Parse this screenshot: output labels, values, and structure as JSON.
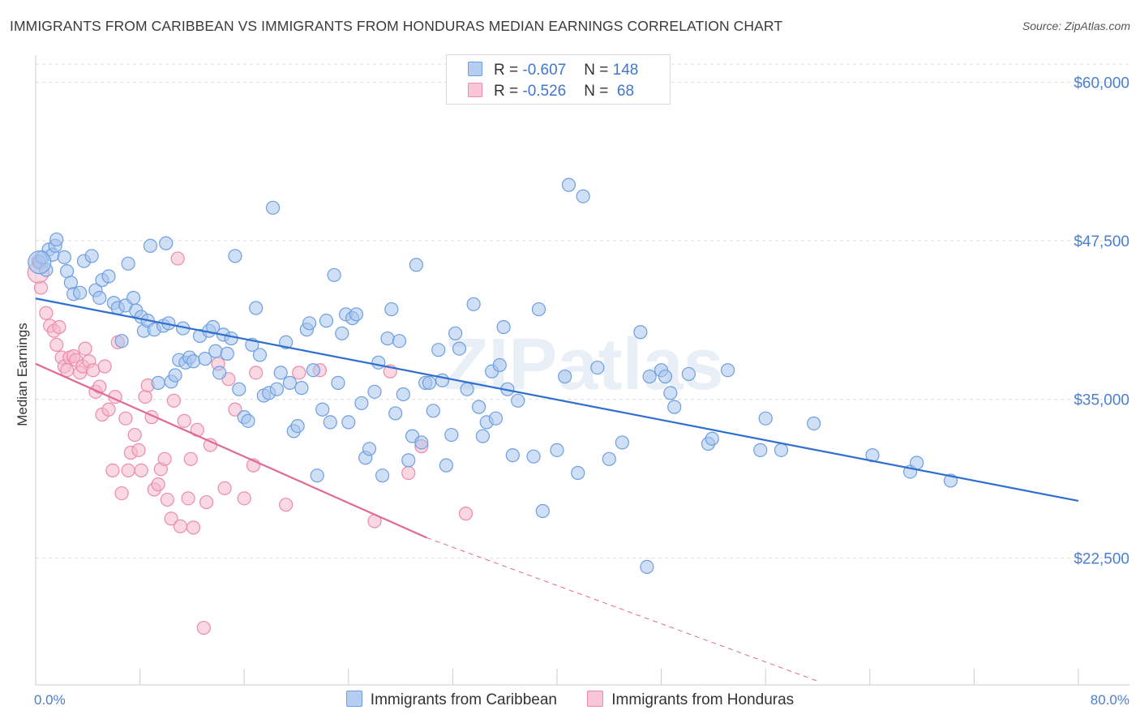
{
  "title": "IMMIGRANTS FROM CARIBBEAN VS IMMIGRANTS FROM HONDURAS MEDIAN EARNINGS CORRELATION CHART",
  "source": "Source: ZipAtlas.com",
  "watermark": "ZIPatlas",
  "legend": {
    "rows": [
      {
        "r_label": "R = ",
        "r_value": "-0.607",
        "n_label": "N = ",
        "n_value": "148"
      },
      {
        "r_label": "R = ",
        "r_value": "-0.526",
        "n_label": "N = ",
        "n_value": " 68"
      }
    ]
  },
  "bottom_legend": [
    "Immigrants from Caribbean",
    "Immigrants from Honduras"
  ],
  "colors": {
    "caribbean_fill": "#a7c4ec",
    "caribbean_stroke": "#6f9ee0",
    "caribbean_line": "#2f6fd0",
    "honduras_fill": "#f6b8cb",
    "honduras_stroke": "#ec8bab",
    "honduras_line": "#e06a93",
    "grid": "#dddddd",
    "tick_text": "#4a7fd0"
  },
  "chart_data": {
    "type": "scatter",
    "title": "IMMIGRANTS FROM CARIBBEAN VS IMMIGRANTS FROM HONDURAS MEDIAN EARNINGS CORRELATION CHART",
    "xlabel": "",
    "ylabel": "Median Earnings",
    "xlim": [
      0,
      80
    ],
    "ylim": [
      12500,
      62000
    ],
    "x_tick_labels": [
      "0.0%",
      "80.0%"
    ],
    "y_ticks": [
      22500,
      35000,
      47500,
      60000
    ],
    "y_tick_labels": [
      "$22,500",
      "$35,000",
      "$47,500",
      "$60,000"
    ],
    "series": [
      {
        "name": "Immigrants from Caribbean",
        "R": -0.607,
        "N": 148,
        "trend": {
          "x": [
            0,
            80
          ],
          "y": [
            42950,
            27000
          ]
        },
        "points": [
          [
            0.3,
            45800
          ],
          [
            0.5,
            46200
          ],
          [
            0.8,
            45200
          ],
          [
            1.0,
            46800
          ],
          [
            1.3,
            46400
          ],
          [
            1.5,
            47100
          ],
          [
            1.6,
            47600
          ],
          [
            2.2,
            46200
          ],
          [
            2.4,
            45100
          ],
          [
            2.7,
            44200
          ],
          [
            2.9,
            43300
          ],
          [
            3.4,
            43400
          ],
          [
            3.7,
            45900
          ],
          [
            4.3,
            46300
          ],
          [
            4.6,
            43600
          ],
          [
            4.9,
            43000
          ],
          [
            5.1,
            44400
          ],
          [
            5.6,
            44700
          ],
          [
            6.0,
            42600
          ],
          [
            6.3,
            42200
          ],
          [
            6.6,
            39600
          ],
          [
            6.9,
            42400
          ],
          [
            7.1,
            45700
          ],
          [
            7.5,
            43000
          ],
          [
            7.7,
            42000
          ],
          [
            8.1,
            41500
          ],
          [
            8.3,
            40400
          ],
          [
            8.6,
            41200
          ],
          [
            8.8,
            47100
          ],
          [
            9.1,
            40500
          ],
          [
            9.4,
            36300
          ],
          [
            9.8,
            40800
          ],
          [
            10.0,
            47300
          ],
          [
            10.2,
            41000
          ],
          [
            10.4,
            36400
          ],
          [
            10.7,
            36900
          ],
          [
            11.0,
            38100
          ],
          [
            11.3,
            40600
          ],
          [
            11.5,
            37900
          ],
          [
            11.8,
            38300
          ],
          [
            12.1,
            38000
          ],
          [
            12.6,
            40000
          ],
          [
            13.0,
            38200
          ],
          [
            13.3,
            40400
          ],
          [
            13.6,
            40700
          ],
          [
            13.8,
            38800
          ],
          [
            14.1,
            37100
          ],
          [
            14.4,
            40100
          ],
          [
            14.7,
            38600
          ],
          [
            15.0,
            39800
          ],
          [
            15.3,
            46300
          ],
          [
            15.6,
            35800
          ],
          [
            16.0,
            33600
          ],
          [
            16.3,
            33300
          ],
          [
            16.6,
            39300
          ],
          [
            16.9,
            42200
          ],
          [
            17.2,
            38500
          ],
          [
            17.5,
            35300
          ],
          [
            17.9,
            35500
          ],
          [
            18.2,
            50100
          ],
          [
            18.5,
            35800
          ],
          [
            18.8,
            37100
          ],
          [
            19.2,
            39500
          ],
          [
            19.5,
            36300
          ],
          [
            19.8,
            32500
          ],
          [
            20.1,
            32900
          ],
          [
            20.4,
            35900
          ],
          [
            20.8,
            40500
          ],
          [
            21.0,
            41000
          ],
          [
            21.3,
            37300
          ],
          [
            21.6,
            29000
          ],
          [
            22.0,
            34200
          ],
          [
            22.3,
            41200
          ],
          [
            22.6,
            33200
          ],
          [
            22.9,
            44800
          ],
          [
            23.2,
            36300
          ],
          [
            23.5,
            40200
          ],
          [
            23.8,
            41700
          ],
          [
            24.0,
            33200
          ],
          [
            24.3,
            41400
          ],
          [
            24.6,
            41700
          ],
          [
            25.0,
            34700
          ],
          [
            25.3,
            30400
          ],
          [
            25.6,
            31100
          ],
          [
            26.0,
            35600
          ],
          [
            26.3,
            37900
          ],
          [
            26.6,
            29000
          ],
          [
            27.0,
            39800
          ],
          [
            27.3,
            42100
          ],
          [
            27.6,
            33900
          ],
          [
            27.9,
            39600
          ],
          [
            28.2,
            35400
          ],
          [
            28.6,
            30200
          ],
          [
            28.9,
            32100
          ],
          [
            29.2,
            45600
          ],
          [
            29.6,
            31600
          ],
          [
            29.9,
            36300
          ],
          [
            30.2,
            36300
          ],
          [
            30.5,
            34100
          ],
          [
            30.9,
            38900
          ],
          [
            31.2,
            36500
          ],
          [
            31.5,
            29800
          ],
          [
            31.9,
            32200
          ],
          [
            32.2,
            40200
          ],
          [
            32.5,
            39000
          ],
          [
            33.1,
            35800
          ],
          [
            33.6,
            42500
          ],
          [
            34.0,
            34400
          ],
          [
            34.3,
            32100
          ],
          [
            34.6,
            33200
          ],
          [
            35.0,
            37200
          ],
          [
            35.3,
            33500
          ],
          [
            35.6,
            37700
          ],
          [
            35.9,
            40700
          ],
          [
            36.2,
            35800
          ],
          [
            36.6,
            30600
          ],
          [
            37.0,
            34900
          ],
          [
            38.2,
            30500
          ],
          [
            38.6,
            42100
          ],
          [
            38.9,
            26200
          ],
          [
            40.0,
            31000
          ],
          [
            40.6,
            36800
          ],
          [
            40.9,
            51900
          ],
          [
            41.6,
            29200
          ],
          [
            42.0,
            51000
          ],
          [
            43.1,
            37500
          ],
          [
            44.0,
            30300
          ],
          [
            45.0,
            31600
          ],
          [
            46.4,
            40300
          ],
          [
            46.9,
            21800
          ],
          [
            47.1,
            36800
          ],
          [
            48.0,
            37300
          ],
          [
            48.3,
            36800
          ],
          [
            48.7,
            35500
          ],
          [
            49.0,
            34400
          ],
          [
            50.1,
            37000
          ],
          [
            51.6,
            31500
          ],
          [
            51.9,
            31900
          ],
          [
            53.1,
            37300
          ],
          [
            55.6,
            31000
          ],
          [
            56.0,
            33500
          ],
          [
            57.2,
            31000
          ],
          [
            59.7,
            33100
          ],
          [
            64.2,
            30600
          ],
          [
            67.1,
            29300
          ],
          [
            67.6,
            30000
          ],
          [
            70.2,
            28600
          ]
        ]
      },
      {
        "name": "Immigrants from Honduras",
        "R": -0.526,
        "N": 68,
        "trend": {
          "x": [
            0,
            30
          ],
          "y": [
            37800,
            24100
          ]
        },
        "trend_dashed": {
          "x": [
            30,
            60
          ],
          "y": [
            24100,
            12800
          ]
        },
        "points": [
          [
            0.2,
            45900
          ],
          [
            0.4,
            43800
          ],
          [
            0.8,
            41800
          ],
          [
            1.1,
            40800
          ],
          [
            1.4,
            40400
          ],
          [
            1.6,
            39300
          ],
          [
            1.8,
            40700
          ],
          [
            2.0,
            38300
          ],
          [
            2.2,
            37600
          ],
          [
            2.4,
            37300
          ],
          [
            2.6,
            38300
          ],
          [
            2.9,
            38400
          ],
          [
            3.1,
            38100
          ],
          [
            3.4,
            37100
          ],
          [
            3.6,
            37600
          ],
          [
            3.8,
            39000
          ],
          [
            4.1,
            38000
          ],
          [
            4.4,
            37300
          ],
          [
            4.6,
            35600
          ],
          [
            4.9,
            36000
          ],
          [
            5.1,
            33800
          ],
          [
            5.3,
            37600
          ],
          [
            5.6,
            34200
          ],
          [
            5.9,
            29400
          ],
          [
            6.1,
            35200
          ],
          [
            6.3,
            39500
          ],
          [
            6.6,
            27600
          ],
          [
            6.9,
            33500
          ],
          [
            7.1,
            29400
          ],
          [
            7.3,
            30800
          ],
          [
            7.6,
            32200
          ],
          [
            7.9,
            31000
          ],
          [
            8.1,
            29400
          ],
          [
            8.4,
            35200
          ],
          [
            8.6,
            36100
          ],
          [
            8.9,
            33600
          ],
          [
            9.1,
            27900
          ],
          [
            9.4,
            28300
          ],
          [
            9.6,
            29500
          ],
          [
            9.9,
            30300
          ],
          [
            10.1,
            27100
          ],
          [
            10.4,
            25600
          ],
          [
            10.6,
            34900
          ],
          [
            10.9,
            46100
          ],
          [
            11.1,
            25000
          ],
          [
            11.4,
            33300
          ],
          [
            11.7,
            27200
          ],
          [
            11.9,
            30300
          ],
          [
            12.1,
            24900
          ],
          [
            12.4,
            32600
          ],
          [
            12.9,
            17000
          ],
          [
            13.1,
            26900
          ],
          [
            13.4,
            31400
          ],
          [
            14.0,
            37800
          ],
          [
            14.5,
            28000
          ],
          [
            14.8,
            36600
          ],
          [
            15.3,
            34200
          ],
          [
            16.0,
            27200
          ],
          [
            16.7,
            29800
          ],
          [
            16.9,
            37100
          ],
          [
            19.2,
            26700
          ],
          [
            20.2,
            37100
          ],
          [
            21.8,
            37300
          ],
          [
            26.0,
            25400
          ],
          [
            27.2,
            37200
          ],
          [
            28.6,
            29200
          ],
          [
            29.6,
            31300
          ],
          [
            33.0,
            26000
          ]
        ]
      }
    ]
  }
}
